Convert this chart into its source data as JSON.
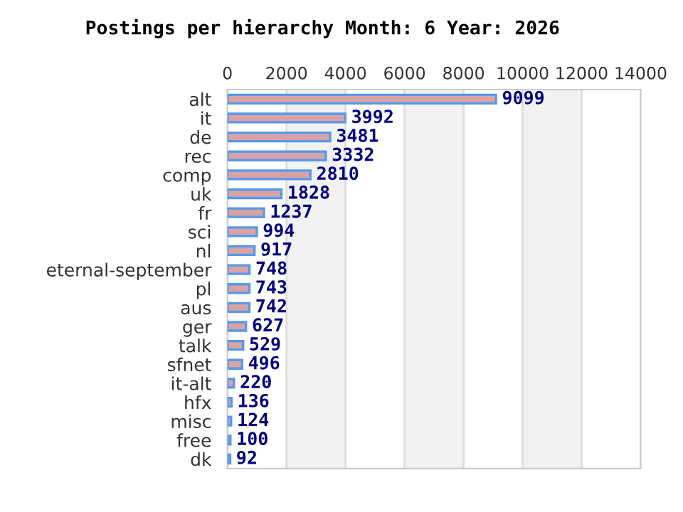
{
  "chart_data": {
    "type": "bar",
    "orientation": "horizontal",
    "title": "Postings per hierarchy Month: 6 Year: 2026",
    "categories": [
      "alt",
      "it",
      "de",
      "rec",
      "comp",
      "uk",
      "fr",
      "sci",
      "nl",
      "eternal-september",
      "pl",
      "aus",
      "ger",
      "talk",
      "sfnet",
      "it-alt",
      "hfx",
      "misc",
      "free",
      "dk"
    ],
    "values": [
      9099,
      3992,
      3481,
      3332,
      2810,
      1828,
      1237,
      994,
      917,
      748,
      743,
      742,
      627,
      529,
      496,
      220,
      136,
      124,
      100,
      92
    ],
    "color": "#d9a3a3",
    "xlim": [
      0,
      14000
    ],
    "xticks": [
      0,
      2000,
      4000,
      6000,
      8000,
      10000,
      12000,
      14000
    ],
    "bands": [
      {
        "axis": "x",
        "from": 2000,
        "to": 4000,
        "color": "#f2f2f2"
      },
      {
        "axis": "x",
        "from": 6000,
        "to": 8000,
        "color": "#f2f2f2"
      },
      {
        "axis": "x",
        "from": 10000,
        "to": 12000,
        "color": "#f2f2f2"
      }
    ],
    "grid": "x",
    "data_labels": true,
    "legend": false
  }
}
